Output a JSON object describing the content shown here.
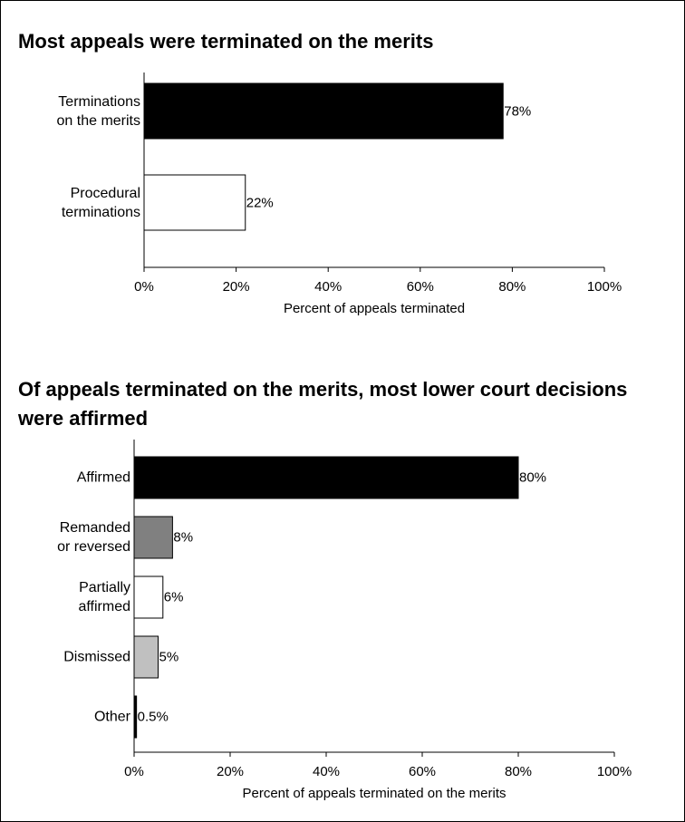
{
  "chart_data": [
    {
      "type": "bar",
      "orientation": "horizontal",
      "title": "Most appeals were terminated on the merits",
      "categories": [
        "Terminations\non the merits",
        "Procedural\nterminations"
      ],
      "values": [
        78,
        22
      ],
      "value_labels": [
        "78%",
        "22%"
      ],
      "colors": [
        "#000000",
        "#ffffff"
      ],
      "xlim": [
        0,
        100
      ],
      "xticks": [
        {
          "value": 0,
          "label": "0%"
        },
        {
          "value": 20,
          "label": "20%"
        },
        {
          "value": 40,
          "label": "40%"
        },
        {
          "value": 60,
          "label": "60%"
        },
        {
          "value": 80,
          "label": "80%"
        },
        {
          "value": 100,
          "label": "100%"
        }
      ],
      "xlabel": "Percent of appeals terminated"
    },
    {
      "type": "bar",
      "orientation": "horizontal",
      "title": "Of appeals terminated on the merits, most lower court decisions were affirmed",
      "categories": [
        "Affirmed",
        "Remanded\nor reversed",
        "Partially\naffirmed",
        "Dismissed",
        "Other"
      ],
      "values": [
        80,
        8,
        6,
        5,
        0.5
      ],
      "value_labels": [
        "80%",
        "8%",
        "6%",
        "5%",
        "0.5%"
      ],
      "colors": [
        "#000000",
        "#808080",
        "#ffffff",
        "#c0c0c0",
        "#000000"
      ],
      "xlim": [
        0,
        100
      ],
      "xticks": [
        {
          "value": 0,
          "label": "0%"
        },
        {
          "value": 20,
          "label": "20%"
        },
        {
          "value": 40,
          "label": "40%"
        },
        {
          "value": 60,
          "label": "60%"
        },
        {
          "value": 80,
          "label": "80%"
        },
        {
          "value": 100,
          "label": "100%"
        }
      ],
      "xlabel": "Percent of appeals terminated on the merits"
    }
  ]
}
